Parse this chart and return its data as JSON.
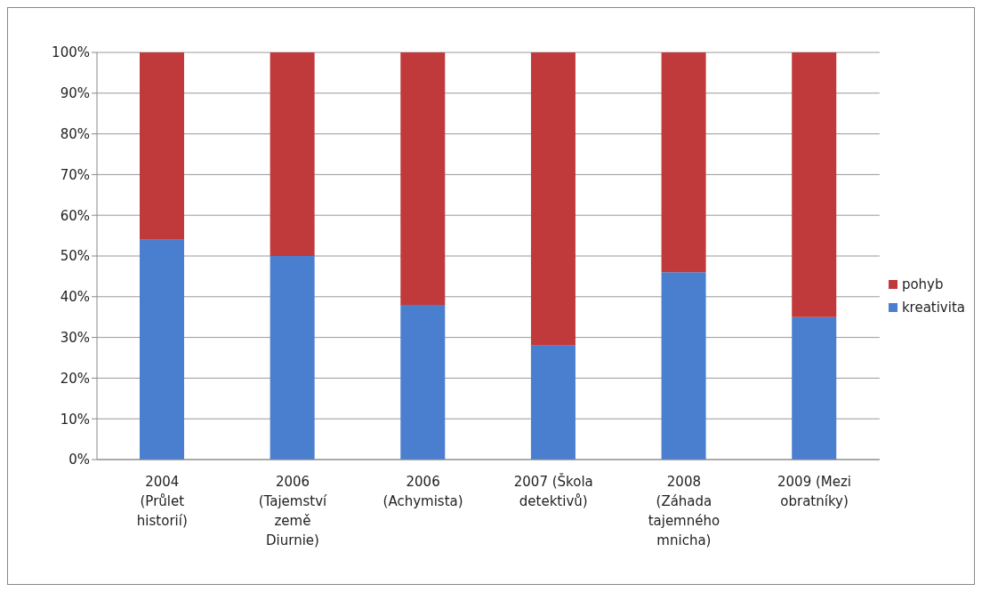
{
  "chart_data": {
    "type": "bar",
    "stacked": true,
    "categories": [
      "2004 (Průlet historií)",
      "2006 (Tajemství země Diurnie)",
      "2006 (Achymista)",
      "2007 (Škola detektivů)",
      "2008 (Záhada tajemného mnicha)",
      "2009 (Mezi obratníky)"
    ],
    "series": [
      {
        "name": "kreativita",
        "color": "#4a7fd0",
        "values": [
          54,
          50,
          38,
          28,
          46,
          35
        ]
      },
      {
        "name": "pohyb",
        "color": "#c0393b",
        "values": [
          46,
          50,
          62,
          72,
          54,
          65
        ]
      }
    ],
    "ylim": [
      0,
      100
    ],
    "yticks": [
      {
        "value": 0,
        "label": "0%"
      },
      {
        "value": 10,
        "label": "10%"
      },
      {
        "value": 20,
        "label": "20%"
      },
      {
        "value": 30,
        "label": "30%"
      },
      {
        "value": 40,
        "label": "40%"
      },
      {
        "value": 50,
        "label": "50%"
      },
      {
        "value": 60,
        "label": "60%"
      },
      {
        "value": 70,
        "label": "70%"
      },
      {
        "value": 80,
        "label": "80%"
      },
      {
        "value": 90,
        "label": "90%"
      },
      {
        "value": 100,
        "label": "100%"
      }
    ],
    "grid": "y",
    "legend": "right"
  }
}
